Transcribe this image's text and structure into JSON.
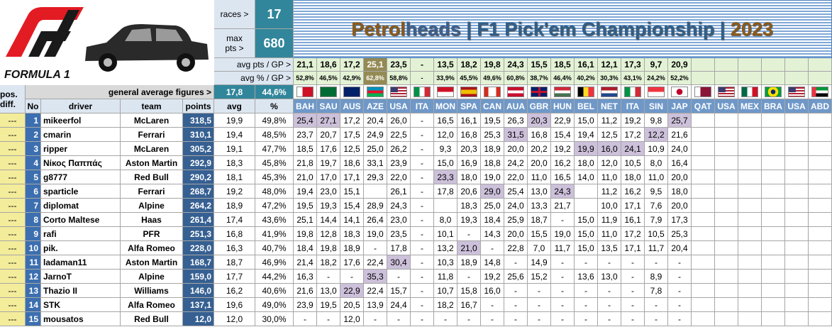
{
  "logo": {
    "text": "FORMULA 1"
  },
  "summary": {
    "races_label": "races >",
    "races": "17",
    "max_label": "max pts >",
    "max": "680"
  },
  "title": [
    "Petrol",
    "heads",
    " | F1 Pick'em Championship | ",
    "2023"
  ],
  "averages": {
    "pts_label": "avg pts / GP >",
    "pts": [
      "21,1",
      "18,6",
      "17,2",
      {
        "text": "25,1",
        "highlight": true
      },
      "23,5",
      "-",
      "13,5",
      "18,2",
      "19,8",
      "24,3",
      "15,5",
      "18,5",
      "16,1",
      "12,1",
      "17,3",
      "9,7",
      "20,9"
    ],
    "pct_label": "avg % / GP >",
    "pct": [
      "52,8%",
      "46,5%",
      "42,9%",
      {
        "text": "62,8%",
        "highlight": true
      },
      "58,8%",
      "-",
      "33,9%",
      "45,5%",
      "49,6%",
      "60,8%",
      "38,7%",
      "46,4%",
      "40,2%",
      "30,3%",
      "43,1%",
      "24,2%",
      "52,2%"
    ]
  },
  "general": {
    "label": "general average figures  >",
    "avg": "17,8",
    "pct": "44,6%"
  },
  "header": {
    "pos": "pos. diff.",
    "no": "No",
    "driver": "driver",
    "team": "team",
    "points": "points",
    "avg": "avg",
    "pct": "%"
  },
  "races": [
    "BAH",
    "SAU",
    "AUS",
    "AZE",
    "USA",
    "ITA",
    "MON",
    "SPA",
    "CAN",
    "AUA",
    "GBR",
    "HUN",
    "BEL",
    "NET",
    "ITA",
    "SIN",
    "JAP",
    "QAT",
    "USA",
    "MEX",
    "BRA",
    "USA",
    "ABD"
  ],
  "rows": [
    {
      "pos": "---",
      "no": "1",
      "driver": "mikeerfol",
      "team": "McLaren",
      "points": "318,5",
      "avg": "19,9",
      "pct": "49,8%",
      "results": [
        {
          "text": "25,4",
          "highlight": true
        },
        {
          "text": "27,1",
          "highlight": true
        },
        "17,2",
        "20,4",
        "26,0",
        "-",
        "16,5",
        "16,1",
        "19,5",
        "26,3",
        {
          "text": "20,3",
          "highlight": true
        },
        "22,9",
        "15,0",
        "11,2",
        "19,2",
        "9,8",
        {
          "text": "25,7",
          "highlight": true
        }
      ]
    },
    {
      "pos": "---",
      "no": "2",
      "driver": "cmarin",
      "team": "Ferrari",
      "points": "310,1",
      "avg": "19,4",
      "pct": "48,5%",
      "results": [
        "23,7",
        "20,7",
        "17,5",
        "24,9",
        "22,5",
        "-",
        "12,0",
        "16,8",
        "25,3",
        {
          "text": "31,5",
          "highlight": true
        },
        "16,8",
        "15,4",
        "19,4",
        "12,5",
        "17,2",
        {
          "text": "12,2",
          "highlight": true
        },
        "21,6"
      ]
    },
    {
      "pos": "---",
      "no": "3",
      "driver": "ripper",
      "team": "McLaren",
      "points": "305,2",
      "avg": "19,1",
      "pct": "47,7%",
      "results": [
        "18,5",
        "17,6",
        "12,5",
        "25,0",
        "26,2",
        "-",
        "9,3",
        "20,3",
        "18,9",
        "20,0",
        "20,2",
        "19,2",
        {
          "text": "19,9",
          "highlight": true
        },
        {
          "text": "16,0",
          "highlight": true
        },
        {
          "text": "24,1",
          "highlight": true
        },
        "10,9",
        "24,0"
      ]
    },
    {
      "pos": "---",
      "no": "4",
      "driver": "Νίκος Παππάς",
      "team": "Aston Martin",
      "points": "292,9",
      "avg": "18,3",
      "pct": "45,8%",
      "results": [
        "21,8",
        "19,7",
        "18,6",
        "33,1",
        "23,9",
        "-",
        "15,0",
        "16,9",
        "18,8",
        "24,2",
        "20,0",
        "16,2",
        "18,0",
        "12,0",
        "10,5",
        "8,0",
        "16,4"
      ]
    },
    {
      "pos": "---",
      "no": "5",
      "driver": "g8777",
      "team": "Red Bull",
      "points": "290,2",
      "avg": "18,1",
      "pct": "45,3%",
      "results": [
        "21,0",
        "17,0",
        "17,1",
        "29,3",
        "22,0",
        "-",
        {
          "text": "23,3",
          "highlight": true
        },
        "18,0",
        "19,0",
        "22,0",
        "11,0",
        "16,5",
        "14,0",
        "11,0",
        "18,0",
        "11,0",
        "20,0"
      ]
    },
    {
      "pos": "---",
      "no": "6",
      "driver": "sparticle",
      "team": "Ferrari",
      "points": "268,7",
      "avg": "19,2",
      "pct": "48,0%",
      "results": [
        "19,4",
        "23,0",
        "15,1",
        null,
        "26,1",
        "-",
        "17,8",
        "20,6",
        {
          "text": "29,0",
          "highlight": true
        },
        "25,4",
        "13,0",
        {
          "text": "24,3",
          "highlight": true
        },
        null,
        "11,2",
        "16,2",
        "9,5",
        "18,0"
      ]
    },
    {
      "pos": "---",
      "no": "7",
      "driver": "diplomat",
      "team": "Alpine",
      "points": "264,2",
      "avg": "18,9",
      "pct": "47,2%",
      "results": [
        "19,5",
        "19,3",
        "15,4",
        "28,9",
        "24,3",
        "-",
        null,
        "18,3",
        "25,0",
        "24,0",
        "13,3",
        "21,7",
        null,
        "10,0",
        "17,1",
        "7,6",
        "20,0"
      ]
    },
    {
      "pos": "---",
      "no": "8",
      "driver": "Corto Maltese",
      "team": "Haas",
      "points": "261,4",
      "avg": "17,4",
      "pct": "43,6%",
      "results": [
        "25,1",
        "14,4",
        "14,1",
        "26,4",
        "23,0",
        "-",
        "8,0",
        "19,3",
        "18,4",
        "25,9",
        "18,7",
        "-",
        "15,0",
        "11,9",
        "16,1",
        "7,9",
        "17,3"
      ]
    },
    {
      "pos": "---",
      "no": "9",
      "driver": "rafi",
      "team": "PFR",
      "points": "251,3",
      "avg": "16,8",
      "pct": "41,9%",
      "results": [
        "19,8",
        "12,8",
        "18,3",
        "19,0",
        "23,5",
        "-",
        "10,1",
        "-",
        "14,3",
        "20,0",
        "15,5",
        "19,0",
        "15,0",
        "11,0",
        "17,2",
        "10,5",
        "25,3"
      ]
    },
    {
      "pos": "---",
      "no": "10",
      "driver": "pik.",
      "team": "Alfa Romeo",
      "points": "228,0",
      "avg": "16,3",
      "pct": "40,7%",
      "results": [
        "18,4",
        "19,8",
        "18,9",
        "-",
        "17,8",
        "-",
        "13,2",
        {
          "text": "21,0",
          "highlight": true
        },
        "-",
        "22,8",
        "7,0",
        "11,7",
        "15,0",
        "13,5",
        "17,1",
        "11,7",
        "20,4"
      ]
    },
    {
      "pos": "---",
      "no": "11",
      "driver": "ladaman11",
      "team": "Aston Martin",
      "points": "168,7",
      "avg": "18,7",
      "pct": "46,9%",
      "results": [
        "21,4",
        "18,2",
        "17,6",
        "22,4",
        {
          "text": "30,4",
          "highlight": true
        },
        "-",
        "10,3",
        "18,9",
        "14,8",
        "-",
        "14,9",
        "-",
        "-",
        "-",
        "-",
        "-",
        "-"
      ]
    },
    {
      "pos": "---",
      "no": "12",
      "driver": "JarnoT",
      "team": "Alpine",
      "points": "159,0",
      "avg": "17,7",
      "pct": "44,2%",
      "results": [
        "16,3",
        "-",
        "-",
        {
          "text": "35,3",
          "highlight": true
        },
        "-",
        "-",
        "11,8",
        "-",
        "19,2",
        "25,6",
        "15,2",
        "-",
        "13,6",
        "13,0",
        "-",
        "8,9",
        "-"
      ]
    },
    {
      "pos": "---",
      "no": "13",
      "driver": "Thazio II",
      "team": "Williams",
      "points": "146,0",
      "avg": "16,2",
      "pct": "40,6%",
      "results": [
        "21,6",
        "13,0",
        {
          "text": "22,9",
          "highlight": true
        },
        "22,4",
        "15,7",
        "-",
        "10,7",
        "15,8",
        "16,0",
        "-",
        "-",
        "-",
        "-",
        "-",
        "-",
        "7,8",
        "-"
      ]
    },
    {
      "pos": "---",
      "no": "14",
      "driver": "STK",
      "team": "Alfa Romeo",
      "points": "137,1",
      "avg": "19,6",
      "pct": "49,0%",
      "results": [
        "23,9",
        "19,5",
        "20,5",
        "13,9",
        "24,4",
        "-",
        "18,2",
        "16,7",
        "-",
        "-",
        "-",
        "-",
        "-",
        "-",
        "-",
        "-",
        "-"
      ]
    },
    {
      "pos": "---",
      "no": "15",
      "driver": "mousatos",
      "team": "Red Bull",
      "points": "12,0",
      "avg": "12,0",
      "pct": "30,0%",
      "results": [
        "-",
        "-",
        "12,0",
        "-",
        "-",
        "-",
        "-",
        "-",
        "-",
        "-",
        "-",
        "-",
        "-",
        "-",
        "-",
        "-",
        "-"
      ]
    }
  ]
}
